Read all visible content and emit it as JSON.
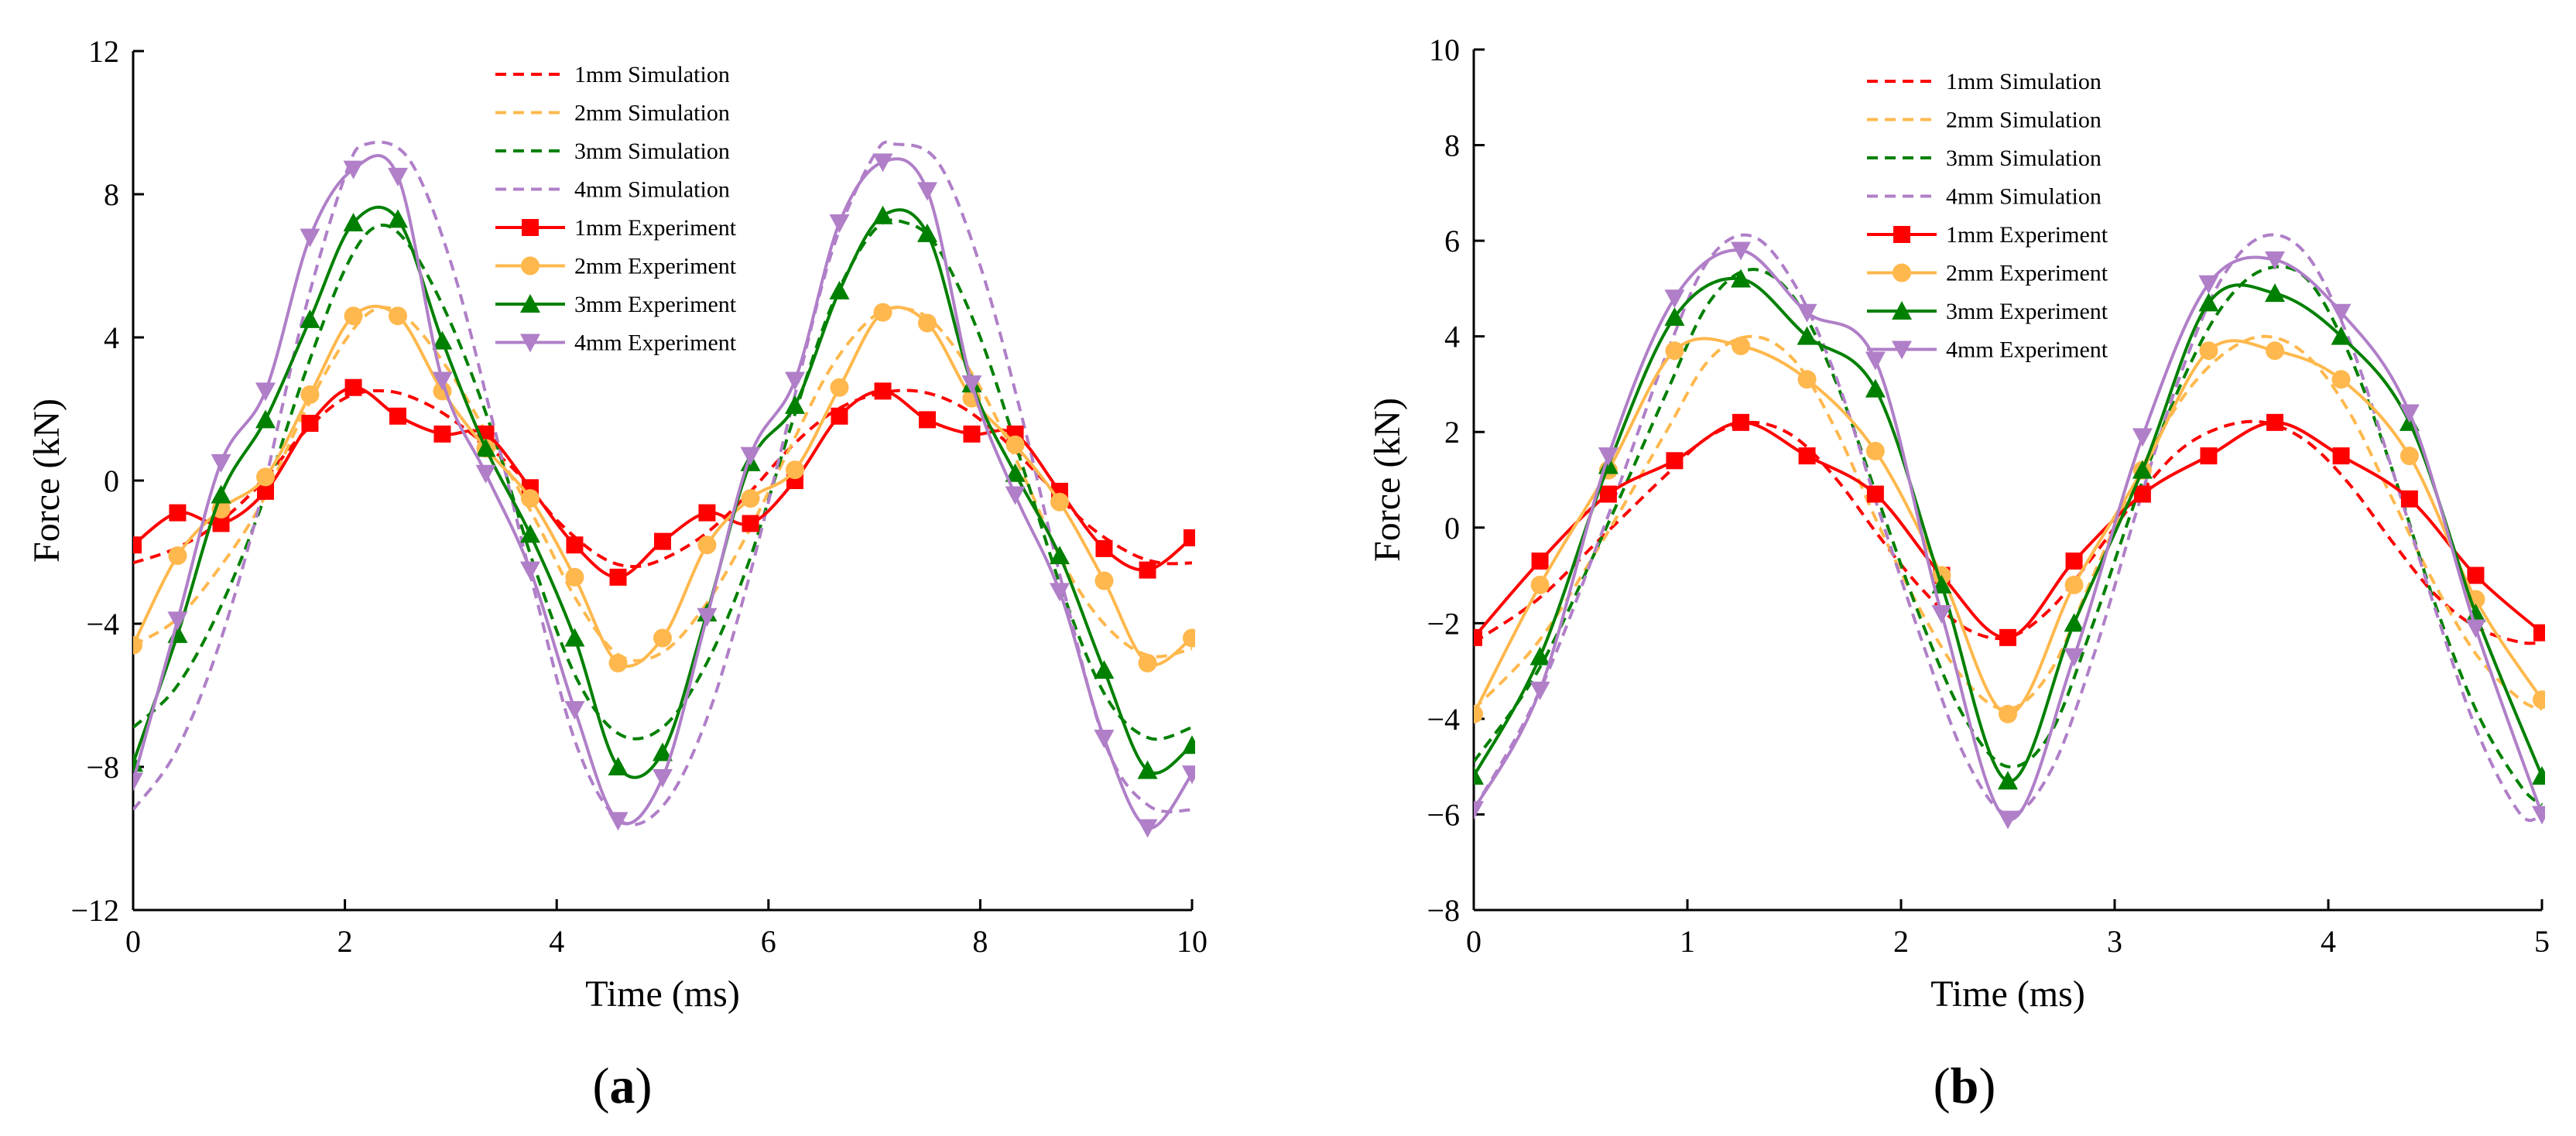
{
  "chart_data": [
    {
      "type": "line",
      "panel_label": "a",
      "xlabel": "Time (ms)",
      "ylabel": "Force (kN)",
      "xlim": [
        0,
        10
      ],
      "ylim": [
        -12,
        12
      ],
      "xticks": [
        0,
        2,
        4,
        6,
        8,
        10
      ],
      "yticks": [
        -12,
        -8,
        -4,
        0,
        4,
        8,
        12
      ],
      "ytick_labels": [
        "−12",
        "−8",
        "−4",
        "0",
        "4",
        "8",
        "12"
      ],
      "grid": false,
      "legend_position": "top-center",
      "series": [
        {
          "name": "1mm Simulation",
          "style": "dashed",
          "color": "#ff0000",
          "marker": null,
          "x": [
            0,
            0.4,
            0.8,
            1.2,
            1.6,
            2.0,
            2.4,
            2.8,
            3.2,
            3.6,
            4.0,
            4.4,
            4.7,
            5.0,
            5.4,
            5.8,
            6.2,
            6.6,
            7.0,
            7.4,
            7.8,
            8.2,
            8.6,
            9.0,
            9.4,
            9.7,
            10.0
          ],
          "y": [
            -2.3,
            -1.9,
            -1.2,
            -0.1,
            1.3,
            2.3,
            2.5,
            2.1,
            1.3,
            0.3,
            -1.1,
            -2.1,
            -2.4,
            -2.2,
            -1.5,
            -0.4,
            0.9,
            1.9,
            2.4,
            2.5,
            2.1,
            1.2,
            0.0,
            -1.2,
            -2.0,
            -2.3,
            -2.3
          ]
        },
        {
          "name": "2mm Simulation",
          "style": "dashed",
          "color": "#ffb84d",
          "marker": null,
          "x": [
            0,
            0.4,
            0.8,
            1.2,
            1.6,
            2.0,
            2.3,
            2.6,
            3.0,
            3.4,
            3.8,
            4.2,
            4.6,
            5.0,
            5.4,
            5.8,
            6.2,
            6.6,
            7.0,
            7.3,
            7.6,
            8.0,
            8.4,
            8.8,
            9.2,
            9.6,
            10.0
          ],
          "y": [
            -4.6,
            -3.9,
            -2.5,
            -0.7,
            1.8,
            3.9,
            4.8,
            4.5,
            3.0,
            1.0,
            -1.1,
            -3.4,
            -4.9,
            -4.8,
            -3.5,
            -1.5,
            0.9,
            3.2,
            4.6,
            4.8,
            4.3,
            2.6,
            0.2,
            -2.4,
            -4.1,
            -4.9,
            -4.7
          ]
        },
        {
          "name": "3mm Simulation",
          "style": "dashed",
          "color": "#008000",
          "marker": null,
          "x": [
            0,
            0.4,
            0.8,
            1.2,
            1.6,
            2.0,
            2.3,
            2.6,
            3.0,
            3.4,
            3.8,
            4.2,
            4.6,
            5.0,
            5.4,
            5.8,
            6.2,
            6.6,
            7.0,
            7.3,
            7.6,
            8.0,
            8.4,
            8.8,
            9.2,
            9.6,
            10.0
          ],
          "y": [
            -6.9,
            -5.8,
            -3.7,
            -0.8,
            2.8,
            5.9,
            7.1,
            6.6,
            4.4,
            1.3,
            -2.5,
            -5.6,
            -7.1,
            -6.9,
            -5.2,
            -2.4,
            1.4,
            4.9,
            7.0,
            7.2,
            6.5,
            4.0,
            0.4,
            -3.3,
            -6.1,
            -7.2,
            -6.9
          ]
        },
        {
          "name": "4mm Simulation",
          "style": "dashed",
          "color": "#b07fc8",
          "marker": null,
          "x": [
            0,
            0.4,
            0.8,
            1.2,
            1.6,
            2.0,
            2.2,
            2.6,
            3.0,
            3.4,
            3.8,
            4.2,
            4.6,
            5.0,
            5.4,
            5.8,
            6.2,
            6.6,
            7.0,
            7.2,
            7.6,
            8.0,
            8.4,
            8.8,
            9.2,
            9.6,
            10.0
          ],
          "y": [
            -9.2,
            -7.6,
            -4.7,
            -0.6,
            4.5,
            8.5,
            9.4,
            9.0,
            6.1,
            1.6,
            -3.2,
            -7.5,
            -9.5,
            -9.1,
            -6.8,
            -2.9,
            1.8,
            6.4,
            9.1,
            9.4,
            8.9,
            6.0,
            1.7,
            -3.2,
            -7.5,
            -9.1,
            -9.2
          ]
        },
        {
          "name": "1mm Experiment",
          "style": "solid",
          "color": "#ff0000",
          "marker": "square",
          "x": [
            0,
            0.42,
            0.83,
            1.25,
            1.67,
            2.08,
            2.5,
            2.92,
            3.33,
            3.75,
            4.17,
            4.58,
            5.0,
            5.42,
            5.83,
            6.25,
            6.67,
            7.08,
            7.5,
            7.92,
            8.33,
            8.75,
            9.17,
            9.58,
            10.0
          ],
          "y": [
            -1.8,
            -0.9,
            -1.2,
            -0.3,
            1.6,
            2.6,
            1.8,
            1.3,
            1.3,
            -0.2,
            -1.8,
            -2.7,
            -1.7,
            -0.9,
            -1.2,
            0.0,
            1.8,
            2.5,
            1.7,
            1.3,
            1.3,
            -0.3,
            -1.9,
            -2.5,
            -1.6
          ]
        },
        {
          "name": "2mm Experiment",
          "style": "solid",
          "color": "#ffb84d",
          "marker": "circle",
          "x": [
            0,
            0.42,
            0.83,
            1.25,
            1.67,
            2.08,
            2.5,
            2.92,
            3.33,
            3.75,
            4.17,
            4.58,
            5.0,
            5.42,
            5.83,
            6.25,
            6.67,
            7.08,
            7.5,
            7.92,
            8.33,
            8.75,
            9.17,
            9.58,
            10.0
          ],
          "y": [
            -4.6,
            -2.1,
            -0.8,
            0.1,
            2.4,
            4.6,
            4.6,
            2.5,
            0.9,
            -0.5,
            -2.7,
            -5.1,
            -4.4,
            -1.8,
            -0.5,
            0.3,
            2.6,
            4.7,
            4.4,
            2.3,
            1.0,
            -0.6,
            -2.8,
            -5.1,
            -4.4
          ]
        },
        {
          "name": "3mm Experiment",
          "style": "solid",
          "color": "#008000",
          "marker": "triangle-up",
          "x": [
            0,
            0.42,
            0.83,
            1.25,
            1.67,
            2.08,
            2.5,
            2.92,
            3.33,
            3.75,
            4.17,
            4.58,
            5.0,
            5.42,
            5.83,
            6.25,
            6.67,
            7.08,
            7.5,
            7.92,
            8.33,
            8.75,
            9.17,
            9.58,
            10.0
          ],
          "y": [
            -7.9,
            -4.3,
            -0.4,
            1.7,
            4.5,
            7.2,
            7.3,
            3.9,
            0.9,
            -1.5,
            -4.4,
            -8.0,
            -7.6,
            -3.7,
            0.5,
            2.1,
            5.3,
            7.4,
            6.9,
            2.7,
            0.2,
            -2.1,
            -5.3,
            -8.1,
            -7.4
          ]
        },
        {
          "name": "4mm Experiment",
          "style": "solid",
          "color": "#b07fc8",
          "marker": "triangle-down",
          "x": [
            0,
            0.42,
            0.83,
            1.25,
            1.67,
            2.08,
            2.5,
            2.92,
            3.33,
            3.75,
            4.17,
            4.58,
            5.0,
            5.42,
            5.83,
            6.25,
            6.67,
            7.08,
            7.5,
            7.92,
            8.33,
            8.75,
            9.17,
            9.58,
            10.0
          ],
          "y": [
            -8.4,
            -3.9,
            0.5,
            2.5,
            6.8,
            8.7,
            8.5,
            2.8,
            0.2,
            -2.5,
            -6.4,
            -9.5,
            -8.3,
            -3.8,
            0.7,
            2.8,
            7.2,
            8.9,
            8.1,
            2.7,
            -0.4,
            -3.1,
            -7.2,
            -9.7,
            -8.2
          ]
        }
      ]
    },
    {
      "type": "line",
      "panel_label": "b",
      "xlabel": "Time (ms)",
      "ylabel": "Force (kN)",
      "xlim": [
        0,
        5
      ],
      "ylim": [
        -8,
        10
      ],
      "xticks": [
        0,
        1,
        2,
        3,
        4,
        5
      ],
      "yticks": [
        -8,
        -6,
        -4,
        -2,
        0,
        2,
        4,
        6,
        8,
        10
      ],
      "ytick_labels": [
        "−8",
        "−6",
        "−4",
        "−2",
        "0",
        "2",
        "4",
        "6",
        "8",
        "10"
      ],
      "grid": false,
      "legend_position": "top-center",
      "series": [
        {
          "name": "1mm Simulation",
          "style": "dashed",
          "color": "#ff0000",
          "marker": null,
          "x": [
            0,
            0.3,
            0.6,
            0.9,
            1.1,
            1.3,
            1.5,
            1.7,
            1.9,
            2.1,
            2.3,
            2.5,
            2.7,
            2.9,
            3.1,
            3.3,
            3.5,
            3.7,
            3.9,
            4.1,
            4.3,
            4.5,
            4.7,
            4.9,
            5.0
          ],
          "y": [
            -2.4,
            -1.5,
            -0.2,
            1.1,
            1.9,
            2.2,
            1.9,
            1.0,
            -0.2,
            -1.3,
            -2.1,
            -2.3,
            -1.7,
            -0.6,
            0.6,
            1.6,
            2.1,
            2.2,
            1.8,
            0.9,
            -0.3,
            -1.4,
            -2.1,
            -2.4,
            -2.4
          ]
        },
        {
          "name": "2mm Simulation",
          "style": "dashed",
          "color": "#ffb84d",
          "marker": null,
          "x": [
            0,
            0.3,
            0.6,
            0.9,
            1.1,
            1.3,
            1.5,
            1.7,
            1.9,
            2.1,
            2.3,
            2.5,
            2.7,
            2.9,
            3.1,
            3.3,
            3.5,
            3.7,
            3.9,
            4.1,
            4.3,
            4.5,
            4.7,
            4.9,
            5.0
          ],
          "y": [
            -3.8,
            -2.4,
            -0.3,
            2.0,
            3.5,
            4.0,
            3.5,
            2.0,
            0.0,
            -1.8,
            -3.2,
            -3.8,
            -3.0,
            -1.0,
            1.0,
            2.6,
            3.6,
            4.0,
            3.6,
            2.4,
            0.6,
            -1.2,
            -2.7,
            -3.6,
            -3.8
          ]
        },
        {
          "name": "3mm Simulation",
          "style": "dashed",
          "color": "#008000",
          "marker": null,
          "x": [
            0,
            0.3,
            0.6,
            0.9,
            1.1,
            1.3,
            1.5,
            1.7,
            1.9,
            2.1,
            2.3,
            2.5,
            2.7,
            2.9,
            3.1,
            3.3,
            3.5,
            3.7,
            3.9,
            4.1,
            4.3,
            4.5,
            4.7,
            4.9,
            5.0
          ],
          "y": [
            -4.9,
            -3.0,
            -0.2,
            2.8,
            4.7,
            5.4,
            4.8,
            3.0,
            0.5,
            -2.0,
            -4.0,
            -5.0,
            -4.3,
            -2.0,
            0.6,
            2.9,
            4.6,
            5.4,
            5.2,
            3.6,
            1.2,
            -1.6,
            -3.9,
            -5.4,
            -5.8
          ]
        },
        {
          "name": "4mm Simulation",
          "style": "dashed",
          "color": "#b07fc8",
          "marker": null,
          "x": [
            0,
            0.3,
            0.6,
            0.9,
            1.1,
            1.3,
            1.5,
            1.7,
            1.9,
            2.1,
            2.3,
            2.5,
            2.7,
            2.9,
            3.1,
            3.3,
            3.5,
            3.7,
            3.9,
            4.1,
            4.3,
            4.5,
            4.7,
            4.9,
            5.0
          ],
          "y": [
            -5.9,
            -3.5,
            -0.1,
            3.6,
            5.6,
            6.1,
            5.1,
            3.1,
            0.3,
            -2.4,
            -4.8,
            -6.0,
            -5.1,
            -2.7,
            0.3,
            3.1,
            5.2,
            6.1,
            5.7,
            3.9,
            1.2,
            -1.7,
            -4.3,
            -6.0,
            -6.0
          ]
        },
        {
          "name": "1mm Experiment",
          "style": "solid",
          "color": "#ff0000",
          "marker": "square",
          "x": [
            0,
            0.31,
            0.63,
            0.94,
            1.25,
            1.56,
            1.88,
            2.19,
            2.5,
            2.81,
            3.13,
            3.44,
            3.75,
            4.06,
            4.38,
            4.69,
            5.0
          ],
          "y": [
            -2.3,
            -0.7,
            0.7,
            1.4,
            2.2,
            1.5,
            0.7,
            -1.0,
            -2.3,
            -0.7,
            0.7,
            1.5,
            2.2,
            1.5,
            0.6,
            -1.0,
            -2.2
          ]
        },
        {
          "name": "2mm Experiment",
          "style": "solid",
          "color": "#ffb84d",
          "marker": "circle",
          "x": [
            0,
            0.31,
            0.63,
            0.94,
            1.25,
            1.56,
            1.88,
            2.19,
            2.5,
            2.81,
            3.13,
            3.44,
            3.75,
            4.06,
            4.38,
            4.69,
            5.0
          ],
          "y": [
            -3.9,
            -1.2,
            1.2,
            3.7,
            3.8,
            3.1,
            1.6,
            -1.0,
            -3.9,
            -1.2,
            1.2,
            3.7,
            3.7,
            3.1,
            1.5,
            -1.5,
            -3.6
          ]
        },
        {
          "name": "3mm Experiment",
          "style": "solid",
          "color": "#008000",
          "marker": "triangle-up",
          "x": [
            0,
            0.31,
            0.63,
            0.94,
            1.25,
            1.56,
            1.88,
            2.19,
            2.5,
            2.81,
            3.13,
            3.44,
            3.75,
            4.06,
            4.38,
            4.69,
            5.0
          ],
          "y": [
            -5.2,
            -2.7,
            1.3,
            4.4,
            5.2,
            4.0,
            2.9,
            -1.2,
            -5.3,
            -2.0,
            1.2,
            4.7,
            4.9,
            4.0,
            2.2,
            -1.8,
            -5.2
          ]
        },
        {
          "name": "4mm Experiment",
          "style": "solid",
          "color": "#b07fc8",
          "marker": "triangle-down",
          "x": [
            0,
            0.31,
            0.63,
            0.94,
            1.25,
            1.56,
            1.88,
            2.19,
            2.5,
            2.81,
            3.13,
            3.44,
            3.75,
            4.06,
            4.38,
            4.69,
            5.0
          ],
          "y": [
            -5.9,
            -3.4,
            1.5,
            4.8,
            5.8,
            4.5,
            3.5,
            -1.8,
            -6.1,
            -2.7,
            1.9,
            5.1,
            5.6,
            4.5,
            2.4,
            -2.1,
            -6.0
          ]
        }
      ]
    }
  ]
}
